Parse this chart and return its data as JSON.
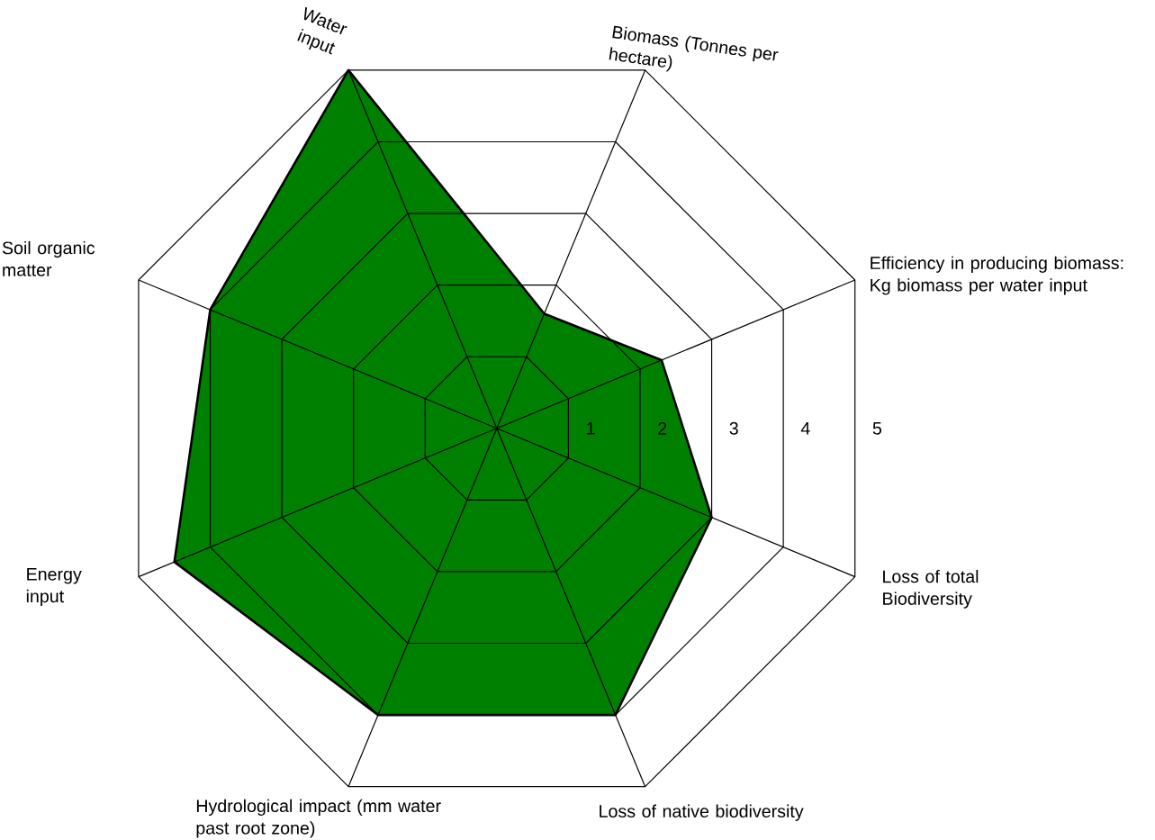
{
  "chart_data": {
    "type": "radar",
    "categories": [
      "Water input",
      "Biomass (Tonnes per hectare)",
      "Efficiency in producing biomass: Kg biomass per water input",
      "Loss of total Biodiversity",
      "Loss of native biodiversity",
      "Hydrological impact (mm water past root zone)",
      "Energy input",
      "Soil organic matter"
    ],
    "series": [
      {
        "color": "#008000",
        "values": [
          5,
          1.6,
          2.3,
          3,
          4,
          4,
          4.5,
          4
        ]
      }
    ],
    "ylim": [
      0,
      5
    ],
    "yticks": [
      1,
      2,
      3,
      4,
      5
    ],
    "grid": true
  }
}
